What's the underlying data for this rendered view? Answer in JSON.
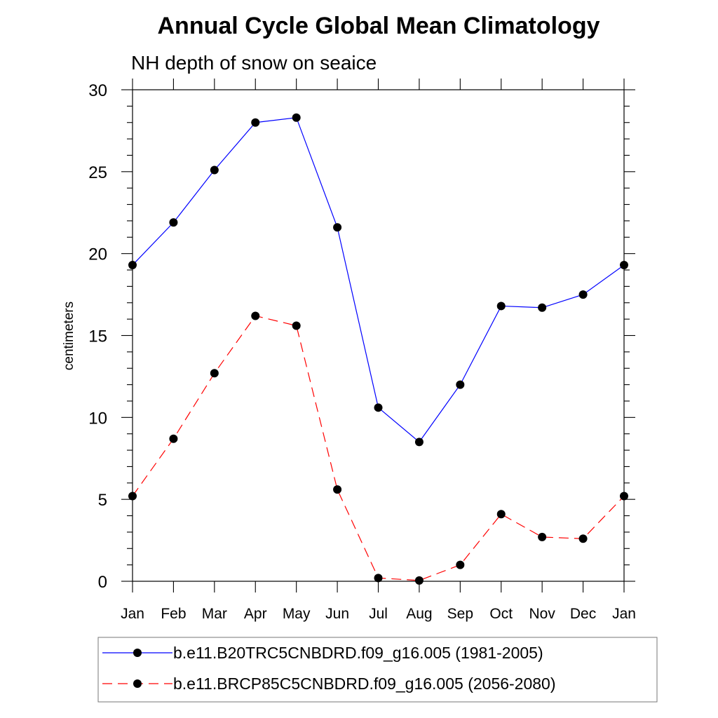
{
  "chart_data": {
    "type": "line",
    "title": "Annual Cycle Global Mean Climatology",
    "subtitle": "NH depth of snow on seaice",
    "xlabel": "",
    "ylabel": "centimeters",
    "categories": [
      "Jan",
      "Feb",
      "Mar",
      "Apr",
      "May",
      "Jun",
      "Jul",
      "Aug",
      "Sep",
      "Oct",
      "Nov",
      "Dec",
      "Jan"
    ],
    "ylim": [
      0,
      30
    ],
    "yticks": [
      0,
      5,
      10,
      15,
      20,
      25,
      30
    ],
    "series": [
      {
        "name": "b.e11.B20TRC5CNBDRD.f09_g16.005 (1981-2005)",
        "color": "#0000ff",
        "dash": "solid",
        "values": [
          19.3,
          21.9,
          25.1,
          28.0,
          28.3,
          21.6,
          10.6,
          8.5,
          12.0,
          16.8,
          16.7,
          17.5,
          19.3
        ]
      },
      {
        "name": "b.e11.BRCP85C5CNBDRD.f09_g16.005 (2056-2080)",
        "color": "#ff0000",
        "dash": "dashed",
        "values": [
          5.2,
          8.7,
          12.7,
          16.2,
          15.6,
          5.6,
          0.2,
          0.05,
          1.0,
          4.1,
          2.7,
          2.6,
          5.2
        ]
      }
    ],
    "legend_position": "bottom"
  }
}
